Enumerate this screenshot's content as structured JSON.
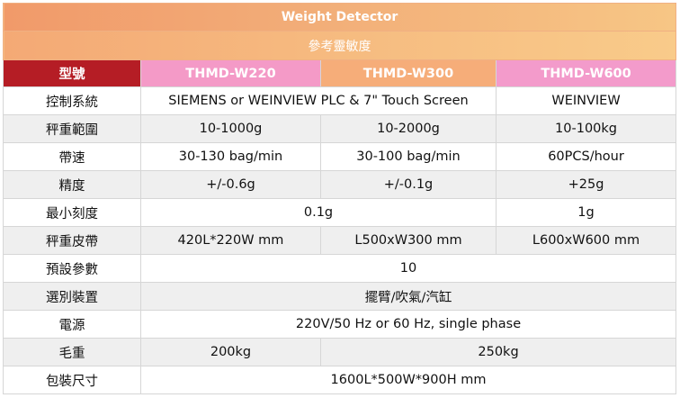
{
  "title": "Weight Detector",
  "subtitle": "參考靈敏度",
  "columns": {
    "label": "型號",
    "models": [
      "THMD-W220",
      "THMD-W300",
      "THMD-W600"
    ]
  },
  "rows": {
    "control_system": {
      "label": "控制系統",
      "w220_w300": "SIEMENS or WEINVIEW PLC & 7\" Touch Screen",
      "w600": "WEINVIEW"
    },
    "weighing_range": {
      "label": "秤重範圍",
      "w220": "10-1000g",
      "w300": "10-2000g",
      "w600": "10-100kg"
    },
    "belt_speed": {
      "label": "帶速",
      "w220": "30-130 bag/min",
      "w300": "30-100 bag/min",
      "w600": "60PCS/hour"
    },
    "accuracy": {
      "label": "精度",
      "w220": "+/-0.6g",
      "w300": "+/-0.1g",
      "w600": "+25g"
    },
    "min_scale": {
      "label": "最小刻度",
      "w220_w300": "0.1g",
      "w600": "1g"
    },
    "weighing_belt": {
      "label": "秤重皮帶",
      "w220": "420L*220W mm",
      "w300": "L500xW300 mm",
      "w600": "L600xW600 mm"
    },
    "presets": {
      "label": "預設參數",
      "all": "10"
    },
    "options": {
      "label": "選別裝置",
      "all": "擺臂/吹氣/汽缸"
    },
    "power": {
      "label": "電源",
      "all": "220V/50 Hz or 60 Hz, single phase"
    },
    "gross_weight": {
      "label": "毛重",
      "w220": "200kg",
      "w300_w600": "250kg"
    },
    "dimensions": {
      "label": "包裝尺寸",
      "all": "1600L*500W*900H mm"
    }
  }
}
